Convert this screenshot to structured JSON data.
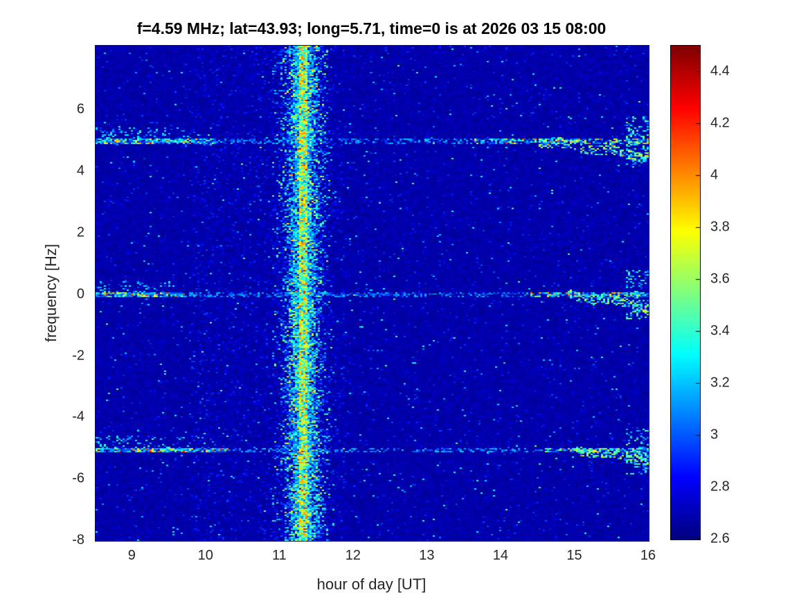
{
  "chart_data": {
    "type": "heatmap",
    "title": "f=4.59 MHz;  lat=43.93; long=5.71, time=0 is at 2026 03 15 08:00",
    "xlabel": "hour of day [UT]",
    "ylabel": "frequency [Hz]",
    "xlim": [
      8.5,
      16
    ],
    "ylim": [
      -8,
      8.1
    ],
    "xticks": [
      9,
      10,
      11,
      12,
      13,
      14,
      15,
      16
    ],
    "yticks": [
      6,
      4,
      2,
      0,
      -2,
      -4,
      -6,
      -8
    ],
    "grid": false,
    "legend": "none",
    "colorbar": {
      "position": "right",
      "colormap": "jet",
      "min": 2.6,
      "max": 4.5,
      "ticks": [
        4.4,
        4.2,
        4,
        3.8,
        3.6,
        3.4,
        3.2,
        3,
        2.8,
        2.6
      ]
    },
    "background_level": 2.7,
    "noise_seed": 20260315,
    "features": {
      "vertical_stripe": {
        "description": "broadband vertical event spanning all frequencies",
        "hour_center": 11.32,
        "core_half_width_hours": 0.05,
        "halo_sigma_hours": 0.17,
        "core_level_range": [
          3.1,
          4.2
        ],
        "halo_level_range": [
          2.75,
          3.6
        ]
      },
      "zone_noise_boost": {
        "hour_start": 9.8,
        "hour_end": 11.9,
        "probability": 0.1,
        "amount": 0.25
      },
      "horizontal_lines": [
        {
          "freq_hz": 5.0,
          "left_active_until_hour": 10.1,
          "right_active_from_hour": 13.6,
          "descend_from_hour": 14.5,
          "descend_rate_hz_per_hour": 0.33,
          "level_range": [
            2.95,
            4.25
          ]
        },
        {
          "freq_hz": 0.0,
          "left_active_until_hour": 9.7,
          "right_active_from_hour": 14.4,
          "descend_from_hour": 14.9,
          "descend_rate_hz_per_hour": 0.35,
          "level_range": [
            2.95,
            4.1
          ]
        },
        {
          "freq_hz": -5.05,
          "left_active_until_hour": 10.3,
          "right_active_from_hour": 14.6,
          "descend_from_hour": 15.0,
          "descend_rate_hz_per_hour": 0.3,
          "level_range": [
            2.95,
            4.1
          ]
        }
      ]
    }
  }
}
